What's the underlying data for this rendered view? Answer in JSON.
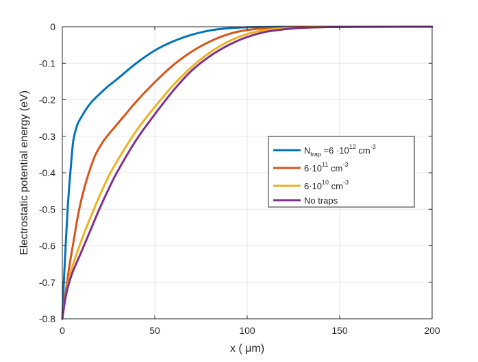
{
  "chart_data": {
    "type": "line",
    "xlabel": "x ( μm)",
    "ylabel": "Electrostatic potential energy (eV)",
    "xlim": [
      0,
      200
    ],
    "ylim": [
      -0.8,
      0
    ],
    "xticks": [
      "0",
      "50",
      "100",
      "150",
      "200"
    ],
    "yticks": [
      "0",
      "-0.1",
      "-0.2",
      "-0.3",
      "-0.4",
      "-0.5",
      "-0.6",
      "-0.7",
      "-0.8"
    ],
    "xtick_values": [
      0,
      50,
      100,
      150,
      200
    ],
    "ytick_values": [
      0,
      -0.1,
      -0.2,
      -0.3,
      -0.4,
      -0.5,
      -0.6,
      -0.7,
      -0.8
    ],
    "grid": true,
    "legend_position": "right-middle",
    "series": [
      {
        "name": "N_trap = 6·10^12 cm^-3",
        "color": "#0072BD",
        "x": [
          0,
          1,
          2,
          3,
          4,
          5,
          6,
          8,
          10,
          13,
          16,
          20,
          25,
          30,
          40,
          50,
          60,
          70,
          80,
          90,
          100,
          110,
          120,
          140,
          160,
          200
        ],
        "y": [
          -0.8,
          -0.68,
          -0.58,
          -0.49,
          -0.42,
          -0.36,
          -0.31,
          -0.27,
          -0.25,
          -0.225,
          -0.205,
          -0.185,
          -0.162,
          -0.142,
          -0.1,
          -0.065,
          -0.04,
          -0.022,
          -0.01,
          -0.004,
          -0.0015,
          -0.0006,
          -0.0003,
          -0.0001,
          0,
          0
        ]
      },
      {
        "name": "6·10^11 cm^-3",
        "color": "#D95319",
        "x": [
          0,
          2,
          4,
          6,
          8,
          10,
          12,
          15,
          18,
          22,
          25,
          30,
          35,
          40,
          50,
          60,
          70,
          80,
          90,
          100,
          110,
          120,
          130,
          140,
          160,
          200
        ],
        "y": [
          -0.8,
          -0.72,
          -0.65,
          -0.59,
          -0.53,
          -0.48,
          -0.44,
          -0.39,
          -0.35,
          -0.315,
          -0.295,
          -0.265,
          -0.235,
          -0.205,
          -0.152,
          -0.105,
          -0.068,
          -0.04,
          -0.02,
          -0.009,
          -0.004,
          -0.0015,
          -0.0007,
          -0.0003,
          -0.0001,
          0
        ]
      },
      {
        "name": "6·10^10 cm^-3",
        "color": "#EDB120",
        "x": [
          0,
          2,
          5,
          10,
          15,
          20,
          25,
          30,
          40,
          50,
          60,
          70,
          80,
          90,
          100,
          110,
          120,
          130,
          140,
          150,
          170,
          200
        ],
        "y": [
          -0.8,
          -0.73,
          -0.665,
          -0.59,
          -0.525,
          -0.465,
          -0.41,
          -0.365,
          -0.285,
          -0.22,
          -0.16,
          -0.11,
          -0.07,
          -0.04,
          -0.02,
          -0.009,
          -0.004,
          -0.002,
          -0.001,
          -0.0005,
          -0.0001,
          0
        ]
      },
      {
        "name": "No traps",
        "color": "#7E2F8E",
        "x": [
          0,
          2,
          5,
          10,
          15,
          20,
          25,
          30,
          40,
          50,
          60,
          70,
          80,
          90,
          100,
          110,
          120,
          130,
          140,
          150,
          170,
          200
        ],
        "y": [
          -0.8,
          -0.735,
          -0.68,
          -0.62,
          -0.56,
          -0.5,
          -0.445,
          -0.395,
          -0.31,
          -0.24,
          -0.175,
          -0.12,
          -0.08,
          -0.05,
          -0.028,
          -0.014,
          -0.007,
          -0.003,
          -0.0015,
          -0.0007,
          -0.0002,
          0
        ]
      }
    ],
    "legend": [
      {
        "main": "N",
        "sub": "trap",
        "rest": " =6 ·10",
        "sup": "12",
        "tail": "  cm",
        "tailsup": "-3"
      },
      {
        "main": "6·10",
        "sub": "",
        "rest": "",
        "sup": "11",
        "tail": "  cm",
        "tailsup": "-3"
      },
      {
        "main": "6·10",
        "sub": "",
        "rest": "",
        "sup": "10",
        "tail": "  cm",
        "tailsup": "-3"
      },
      {
        "main": "No traps",
        "sub": "",
        "rest": "",
        "sup": "",
        "tail": "",
        "tailsup": ""
      }
    ]
  }
}
